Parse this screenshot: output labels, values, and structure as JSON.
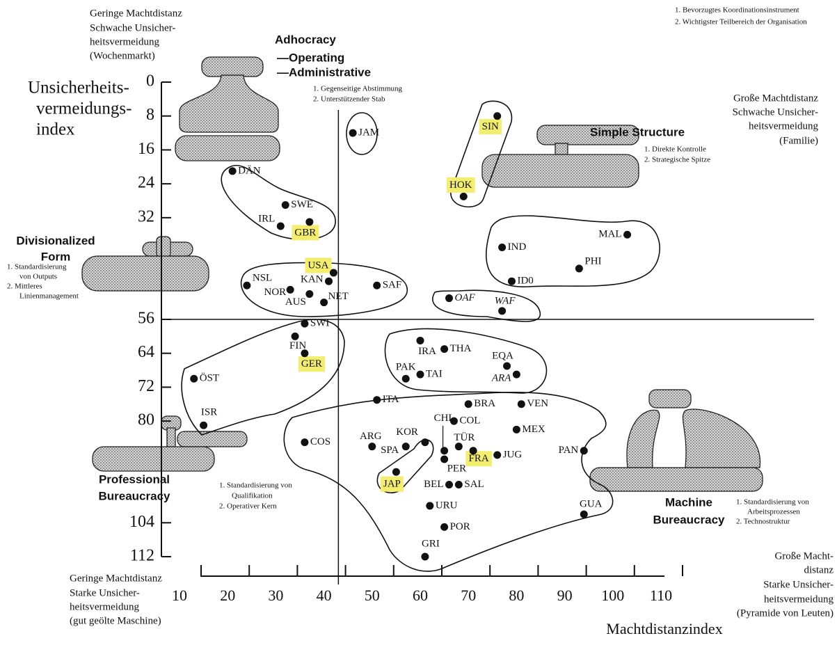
{
  "chart_data": {
    "type": "scatter",
    "xlabel": "Machtdistanzindex",
    "ylabel": [
      "Unsicherheits-",
      "vermeidungs-",
      "index"
    ],
    "xlim": [
      10,
      110
    ],
    "ylim": [
      0,
      112
    ],
    "y_inverted": true,
    "xticks": [
      10,
      20,
      30,
      40,
      50,
      60,
      70,
      80,
      90,
      100,
      110
    ],
    "yticks": [
      0,
      8,
      16,
      24,
      32,
      56,
      64,
      72,
      80,
      104,
      112
    ],
    "ref_lines": {
      "x": 43,
      "y": 56
    },
    "color": "#111111",
    "highlight_color": "#f3ee6e",
    "labels": [
      "JAM",
      "SIN",
      "HOK",
      "DÄN",
      "SWE",
      "IRL",
      "GBR",
      "MAL",
      "IND",
      "PHI",
      "ID0",
      "USA",
      "NSL",
      "KAN",
      "NOR",
      "NET",
      "AUS",
      "SAF",
      "OAF",
      "WAF",
      "SWI",
      "FIN",
      "GER",
      "ÖST",
      "ISR",
      "IRA",
      "THA",
      "EQA",
      "ARA",
      "PAK",
      "TAI",
      "ITA",
      "BRA",
      "VEN",
      "COL",
      "MEX",
      "CHL",
      "KOR",
      "ARG",
      "SPA",
      "TÜR",
      "FRA",
      "PAN",
      "JUG",
      "PER",
      "COS",
      "JAP",
      "BEL",
      "SAL",
      "URU",
      "POR",
      "GUA",
      "GRI"
    ],
    "x": [
      46,
      76,
      69,
      21,
      32,
      31,
      37,
      103,
      77,
      93,
      79,
      42,
      24,
      41,
      33,
      40,
      37,
      51,
      66,
      77,
      36,
      34,
      36,
      13,
      15,
      60,
      65,
      78,
      80,
      57,
      60,
      51,
      70,
      81,
      67,
      80,
      65,
      61,
      50,
      57,
      68,
      71,
      94,
      76,
      65,
      36,
      55,
      66,
      68,
      62,
      65,
      94,
      61
    ],
    "values": [
      12,
      8,
      27,
      21,
      29,
      34,
      33,
      36,
      39,
      44,
      47,
      45,
      48,
      47,
      49,
      52,
      50,
      48,
      51,
      54,
      57,
      60,
      64,
      70,
      81,
      61,
      63,
      67,
      69,
      70,
      69,
      75,
      76,
      76,
      80,
      82,
      87,
      85,
      86,
      86,
      86,
      87,
      87,
      88,
      89,
      85,
      92,
      95,
      95,
      100,
      105,
      102,
      112
    ],
    "highlighted": [
      false,
      true,
      true,
      false,
      false,
      false,
      true,
      false,
      false,
      false,
      false,
      true,
      false,
      false,
      false,
      false,
      false,
      false,
      false,
      false,
      false,
      false,
      true,
      false,
      false,
      false,
      false,
      false,
      false,
      false,
      false,
      false,
      false,
      false,
      false,
      false,
      false,
      false,
      false,
      false,
      false,
      true,
      false,
      false,
      false,
      false,
      true,
      false,
      false,
      false,
      false,
      false,
      false
    ],
    "italic": [
      false,
      false,
      false,
      false,
      false,
      false,
      false,
      false,
      false,
      false,
      false,
      false,
      false,
      false,
      false,
      false,
      false,
      false,
      true,
      true,
      false,
      false,
      false,
      false,
      false,
      false,
      false,
      false,
      true,
      false,
      false,
      false,
      false,
      false,
      false,
      false,
      false,
      false,
      false,
      false,
      false,
      false,
      false,
      false,
      false,
      false,
      false,
      false,
      false,
      false,
      false,
      false,
      false
    ],
    "key_note": [
      "1. Bevorzugtes Koordinationsinstrument",
      "2. Wichtigster Teilbereich der Organisation"
    ],
    "quadrants": [
      [
        "Geringe Machtdistanz",
        "Schwache Unsicher-",
        "heitsvermeidung",
        "(Wochenmarkt)"
      ],
      [
        "Große Machtdistanz",
        "Schwache Unsicher-",
        "heitsvermeidung",
        "(Familie)"
      ],
      [
        "Geringe Machtdistanz",
        "Starke Unsicher-",
        "heitsvermeidung",
        "(gut geölte Maschine)"
      ],
      [
        "Große Macht-",
        "distanz",
        "Starke Unsicher-",
        "heitsvermeidung",
        "(Pyramide von Leuten)"
      ]
    ],
    "structures": [
      {
        "name": [
          "Adhocracy",
          "—Operating",
          "—Administrative"
        ],
        "notes": [
          "1. Gegenseitige Abstimmung",
          "2. Unterstützender Stab"
        ]
      },
      {
        "name": [
          "Simple Structure"
        ],
        "notes": [
          "1. Direkte Kontrolle",
          "2. Strategische Spitze"
        ]
      },
      {
        "name": [
          "Divisionalized",
          "Form"
        ],
        "notes": [
          "1. Standardisierung",
          "von Outputs",
          "2. Mittleres",
          "Linienmanagement"
        ]
      },
      {
        "name": [
          "Professional",
          "Bureaucracy"
        ],
        "notes": [
          "1. Standardisierung von",
          "Qualifikation",
          "2. Operativer Kern"
        ]
      },
      {
        "name": [
          "Machine",
          "Bureaucracy"
        ],
        "notes": [
          "1. Standardisierung von",
          "Arbeitsprozessen",
          "2. Technostruktur"
        ]
      }
    ]
  }
}
